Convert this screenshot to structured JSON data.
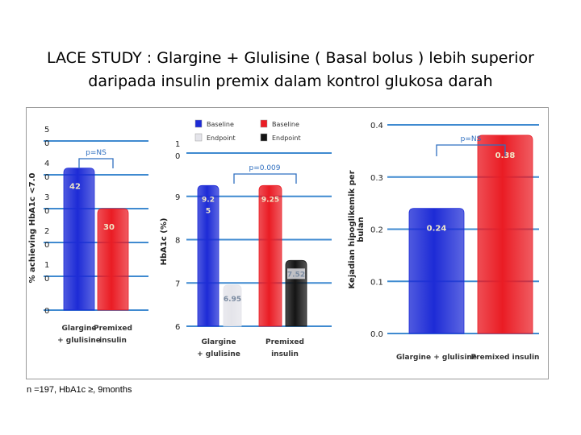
{
  "title": {
    "line1": "LACE STUDY : Glargine + Glulisine  ( Basal bolus ) lebih superior",
    "line2": "daripada insulin premix dalam kontrol glukosa darah"
  },
  "footnote": "n =197,  HbA1c ≥,  9months",
  "colors": {
    "blue": "#1d2bd6",
    "red": "#ea1c24",
    "light_gray": "#e4e4ea",
    "black": "#141414",
    "gridline": "#3f8ad0"
  },
  "chart_data": [
    {
      "type": "bar",
      "ylabel": "% achieving HbA1c <7.0",
      "ytick_labels": [
        "5\n0",
        "4\n0",
        "3\n0",
        "2\n0",
        "1\n0",
        "0"
      ],
      "yticks": [
        50,
        40,
        30,
        20,
        10,
        0
      ],
      "ylim": [
        0,
        50
      ],
      "grid": true,
      "categories": [
        "Glargine\n+ glulisine",
        "Premixed\ninsulin"
      ],
      "series": [
        {
          "values": [
            42,
            30
          ],
          "labels": [
            "42",
            "30"
          ],
          "colors": [
            "blue",
            "red"
          ]
        }
      ],
      "annotation": "p=NS"
    },
    {
      "type": "bar",
      "ylabel": "HbA1c (%)",
      "ytick_labels": [
        "1\n0",
        "9",
        "8",
        "7",
        "6"
      ],
      "yticks": [
        10,
        9,
        8,
        7,
        6
      ],
      "ylim": [
        6,
        10
      ],
      "grid": true,
      "legend": [
        {
          "name": "Baseline",
          "color": "blue"
        },
        {
          "name": "Endpoint",
          "color": "light_gray"
        },
        {
          "name": "Baseline",
          "color": "red"
        },
        {
          "name": "Endpoint",
          "color": "black"
        }
      ],
      "legend_position": "top",
      "categories": [
        "Glargine\n+ glulisine",
        "Premixed\ninsulin"
      ],
      "series": [
        {
          "name": "Baseline",
          "values": [
            9.25,
            9.25
          ],
          "labels": [
            "9.2\n5",
            "9.25"
          ],
          "colors": [
            "blue",
            "red"
          ]
        },
        {
          "name": "Endpoint",
          "values": [
            6.95,
            7.52
          ],
          "labels": [
            "6.95",
            "7.52"
          ],
          "colors": [
            "light_gray",
            "black"
          ]
        }
      ],
      "annotation": "p=0.009"
    },
    {
      "type": "bar",
      "ylabel": "Kejadian hipoglikemik per bulan",
      "ytick_labels": [
        "0.4",
        "0.3",
        "0.2",
        "0.1",
        "0.0"
      ],
      "yticks": [
        0.4,
        0.3,
        0.2,
        0.1,
        0.0
      ],
      "ylim": [
        0,
        0.4
      ],
      "grid": true,
      "categories": [
        "Glargine + glulisine",
        "Premixed insulin"
      ],
      "series": [
        {
          "values": [
            0.24,
            0.38
          ],
          "labels": [
            "0.24",
            "0.38"
          ],
          "colors": [
            "blue",
            "red"
          ]
        }
      ],
      "annotation": "p=NS"
    }
  ]
}
